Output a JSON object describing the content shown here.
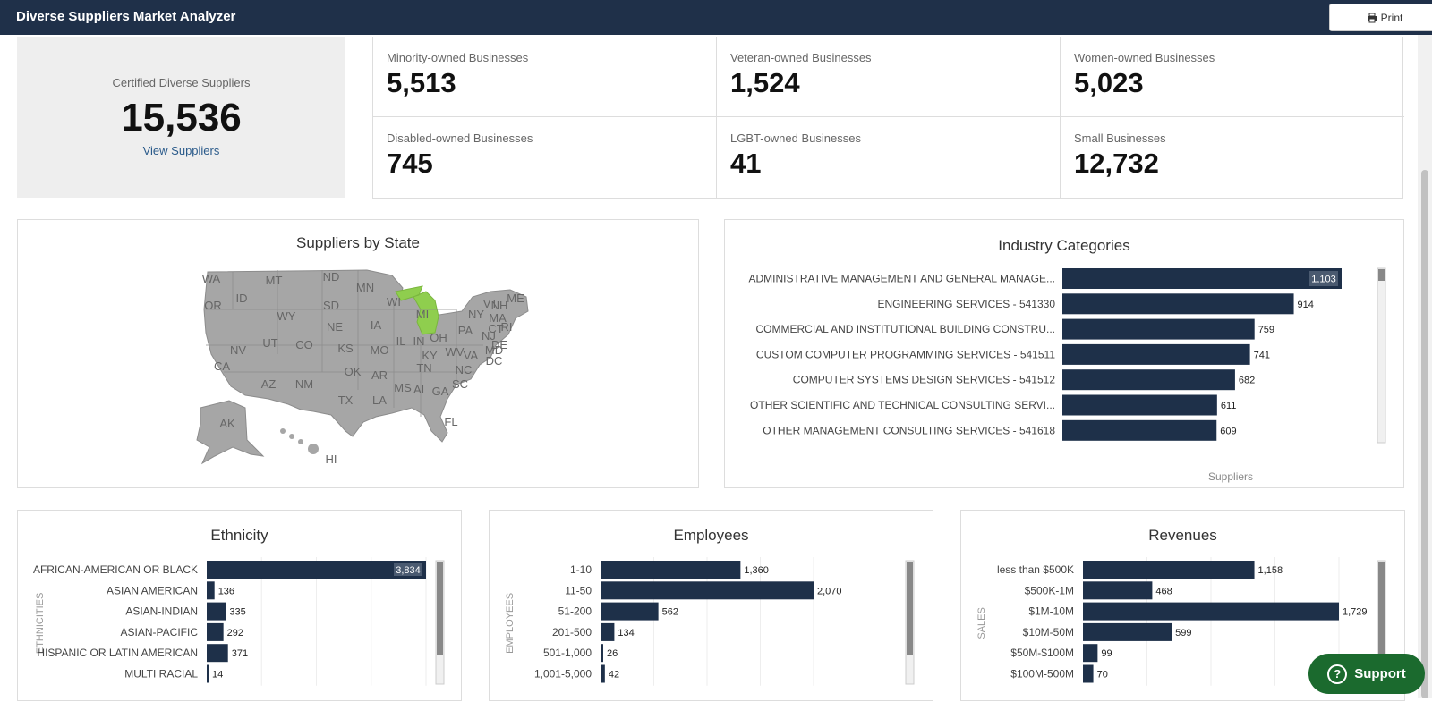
{
  "header": {
    "title": "Diverse Suppliers Market Analyzer",
    "print_label": "Print"
  },
  "certified": {
    "label": "Certified Diverse Suppliers",
    "value": "15,536",
    "link": "View Suppliers"
  },
  "stats": [
    {
      "label": "Minority-owned Businesses",
      "value": "5,513"
    },
    {
      "label": "Veteran-owned Businesses",
      "value": "1,524"
    },
    {
      "label": "Women-owned Businesses",
      "value": "5,023"
    },
    {
      "label": "Disabled-owned Businesses",
      "value": "745"
    },
    {
      "label": "LGBT-owned Businesses",
      "value": "41"
    },
    {
      "label": "Small Businesses",
      "value": "12,732"
    }
  ],
  "map": {
    "title": "Suppliers by State",
    "state_labels": [
      "WA",
      "MT",
      "ND",
      "MN",
      "ID",
      "OR",
      "SD",
      "WI",
      "MI",
      "NY",
      "VT",
      "NH",
      "ME",
      "MA",
      "WY",
      "NE",
      "IA",
      "PA",
      "RI",
      "CT",
      "NJ",
      "DE",
      "MD",
      "DC",
      "NV",
      "UT",
      "CO",
      "KS",
      "MO",
      "IL",
      "IN",
      "OH",
      "WV",
      "VA",
      "KY",
      "CA",
      "OK",
      "AR",
      "TN",
      "NC",
      "AZ",
      "NM",
      "TX",
      "LA",
      "MS",
      "AL",
      "GA",
      "SC",
      "FL",
      "AK",
      "HI"
    ],
    "highlighted_state": "MI",
    "highlight_color": "#8fce4e",
    "base_color": "#a6a6a6"
  },
  "chart_data": [
    {
      "type": "bar",
      "title": "Industry Categories",
      "xlabel": "Suppliers",
      "categories": [
        "ADMINISTRATIVE MANAGEMENT AND GENERAL MANAGE...",
        "ENGINEERING SERVICES - 541330",
        "COMMERCIAL AND INSTITUTIONAL BUILDING CONSTRU...",
        "CUSTOM COMPUTER PROGRAMMING SERVICES - 541511",
        "COMPUTER SYSTEMS DESIGN SERVICES - 541512",
        "OTHER SCIENTIFIC AND TECHNICAL CONSULTING SERVI...",
        "OTHER MANAGEMENT CONSULTING SERVICES - 541618"
      ],
      "values": [
        1103,
        914,
        759,
        741,
        682,
        611,
        609
      ],
      "value_labels": [
        "1,103",
        "914",
        "759",
        "741",
        "682",
        "611",
        "609"
      ],
      "color": "#1e3049"
    },
    {
      "type": "bar",
      "title": "Ethnicity",
      "ylabel": "ETHNICITIES",
      "categories": [
        "AFRICAN-AMERICAN OR BLACK",
        "ASIAN AMERICAN",
        "ASIAN-INDIAN",
        "ASIAN-PACIFIC",
        "HISPANIC OR LATIN AMERICAN",
        "MULTI RACIAL"
      ],
      "values": [
        3834,
        136,
        335,
        292,
        371,
        14
      ],
      "value_labels": [
        "3,834",
        "136",
        "335",
        "292",
        "371",
        "14"
      ],
      "color": "#1e3049"
    },
    {
      "type": "bar",
      "title": "Employees",
      "ylabel": "EMPLOYEES",
      "categories": [
        "1-10",
        "11-50",
        "51-200",
        "201-500",
        "501-1,000",
        "1,001-5,000"
      ],
      "values": [
        1360,
        2070,
        562,
        134,
        26,
        42
      ],
      "value_labels": [
        "1,360",
        "2,070",
        "562",
        "134",
        "26",
        "42"
      ],
      "color": "#1e3049"
    },
    {
      "type": "bar",
      "title": "Revenues",
      "ylabel": "SALES",
      "categories": [
        "less than $500K",
        "$500K-1M",
        "$1M-10M",
        "$10M-50M",
        "$50M-$100M",
        "$100M-500M"
      ],
      "values": [
        1158,
        468,
        1729,
        599,
        99,
        70
      ],
      "value_labels": [
        "1,158",
        "468",
        "1,729",
        "599",
        "99",
        "70"
      ],
      "color": "#1e3049"
    }
  ],
  "support": {
    "label": "Support",
    "icon": "?"
  }
}
